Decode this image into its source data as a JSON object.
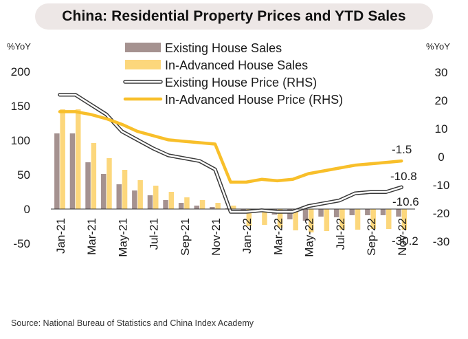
{
  "title": "China: Residential Property Prices and YTD Sales",
  "source": "Source: National Bureau of Statistics and China Index Academy",
  "colors": {
    "existing_sales": "#a59290",
    "advanced_sales": "#fcd77c",
    "existing_price_outline": "#3a3a3a",
    "advanced_price": "#f8bf2a"
  },
  "chart_data": {
    "type": "bar",
    "y_left": {
      "label": "%YoY",
      "ylim": [
        -50,
        200
      ],
      "ticks": [
        200,
        150,
        100,
        50,
        0,
        -50
      ]
    },
    "y_right": {
      "label": "%YoY",
      "ylim": [
        -30,
        30
      ],
      "ticks": [
        30,
        20,
        10,
        0,
        -10,
        -20,
        -30
      ]
    },
    "x_tick_labels": [
      "Jan-21",
      "Mar-21",
      "May-21",
      "Jul-21",
      "Sep-21",
      "Nov-21",
      "Jan-22",
      "Mar-22",
      "May-22",
      "Jul-22",
      "Sep-22",
      "Nov-22"
    ],
    "categories": [
      "Jan-21",
      "Feb-21",
      "Mar-21",
      "Apr-21",
      "May-21",
      "Jun-21",
      "Jul-21",
      "Aug-21",
      "Sep-21",
      "Oct-21",
      "Nov-21",
      "Dec-21",
      "Jan-22",
      "Feb-22",
      "Mar-22",
      "Apr-22",
      "May-22",
      "Jun-22",
      "Jul-22",
      "Aug-22",
      "Sep-22",
      "Oct-22",
      "Nov-22"
    ],
    "series": [
      {
        "name": "Existing House Sales",
        "kind": "bar",
        "axis": "left",
        "values": [
          110,
          110,
          68,
          51,
          36,
          27,
          20,
          13,
          9,
          5,
          3,
          1,
          -2,
          -4,
          -8,
          -15,
          -17,
          -11,
          -12,
          -9,
          -9,
          -9,
          -11
        ]
      },
      {
        "name": "In-Advanced House Sales",
        "kind": "bar",
        "axis": "left",
        "values": [
          145,
          145,
          96,
          74,
          57,
          42,
          34,
          25,
          17,
          13,
          9,
          5,
          -25,
          -23,
          -27,
          -31,
          -34,
          -32,
          -30,
          -30,
          -29,
          -29,
          -30.2
        ]
      },
      {
        "name": "Existing House Price (RHS)",
        "kind": "line",
        "axis": "right",
        "values": [
          22,
          22,
          18.5,
          15,
          9,
          6,
          3,
          0.5,
          -0.5,
          -1.5,
          -4.5,
          -19.5,
          -19.5,
          -19,
          -19.5,
          -19.5,
          -17.5,
          -16.5,
          -15.5,
          -13,
          -12.5,
          -12.5,
          -10.8
        ]
      },
      {
        "name": "In-Advanced House Price (RHS)",
        "kind": "line",
        "axis": "right",
        "values": [
          16,
          16,
          15,
          13.5,
          11.5,
          9,
          7.5,
          6,
          5.5,
          5,
          4.5,
          -9,
          -9,
          -8,
          -8.5,
          -8,
          -6,
          -5,
          -4,
          -3,
          -2.5,
          -2,
          -1.5
        ]
      }
    ],
    "annotations": [
      "-1.5",
      "-10.8",
      "-10.6",
      "-30.2"
    ],
    "legend": "top-center",
    "grid": false
  }
}
